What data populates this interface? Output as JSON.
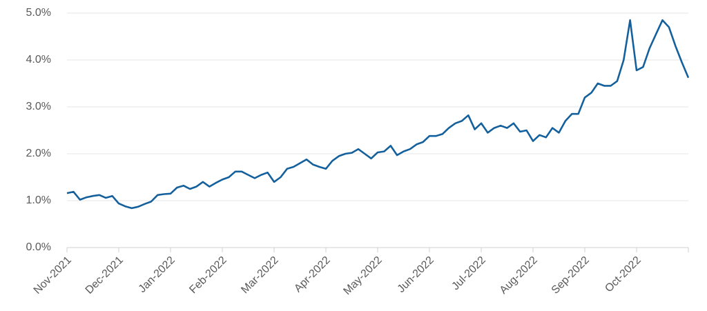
{
  "chart_data": {
    "type": "line",
    "categories": [
      "Nov-2021",
      null,
      null,
      null,
      null,
      null,
      null,
      null,
      "Dec-2021",
      null,
      null,
      null,
      null,
      null,
      null,
      null,
      "Jan-2022",
      null,
      null,
      null,
      null,
      null,
      null,
      null,
      "Feb-2022",
      null,
      null,
      null,
      null,
      null,
      null,
      null,
      "Mar-2022",
      null,
      null,
      null,
      null,
      null,
      null,
      null,
      "Apr-2022",
      null,
      null,
      null,
      null,
      null,
      null,
      null,
      "May-2022",
      null,
      null,
      null,
      null,
      null,
      null,
      null,
      "Jun-2022",
      null,
      null,
      null,
      null,
      null,
      null,
      null,
      "Jul-2022",
      null,
      null,
      null,
      null,
      null,
      null,
      null,
      "Aug-2022",
      null,
      null,
      null,
      null,
      null,
      null,
      null,
      "Sep-2022",
      null,
      null,
      null,
      null,
      null,
      null,
      null,
      "Oct-2022",
      null,
      null,
      null,
      null,
      null,
      null,
      null,
      null
    ],
    "series": [
      {
        "color": "#13609c",
        "values": [
          1.16,
          1.19,
          1.02,
          1.07,
          1.1,
          1.12,
          1.06,
          1.1,
          0.94,
          0.88,
          0.84,
          0.87,
          0.93,
          0.98,
          1.12,
          1.14,
          1.15,
          1.28,
          1.32,
          1.25,
          1.3,
          1.4,
          1.3,
          1.38,
          1.45,
          1.5,
          1.62,
          1.62,
          1.55,
          1.48,
          1.55,
          1.6,
          1.4,
          1.5,
          1.68,
          1.72,
          1.8,
          1.88,
          1.77,
          1.72,
          1.68,
          1.85,
          1.95,
          2.0,
          2.02,
          2.1,
          2.0,
          1.9,
          2.03,
          2.05,
          2.17,
          1.97,
          2.05,
          2.1,
          2.2,
          2.25,
          2.38,
          2.38,
          2.42,
          2.55,
          2.65,
          2.7,
          2.82,
          2.52,
          2.65,
          2.45,
          2.55,
          2.6,
          2.55,
          2.65,
          2.47,
          2.5,
          2.27,
          2.4,
          2.35,
          2.55,
          2.45,
          2.7,
          2.85,
          2.85,
          3.2,
          3.3,
          3.5,
          3.45,
          3.45,
          3.55,
          4.0,
          4.85,
          3.78,
          3.85,
          4.25,
          4.55,
          4.85,
          4.7,
          4.3,
          3.95,
          3.62
        ]
      }
    ],
    "ylim": [
      0,
      5
    ],
    "yticks": [
      {
        "value": 0,
        "label": "0.0%"
      },
      {
        "value": 1,
        "label": "1.0%"
      },
      {
        "value": 2,
        "label": "2.0%"
      },
      {
        "value": 3,
        "label": "3.0%"
      },
      {
        "value": 4,
        "label": "4.0%"
      },
      {
        "value": 5,
        "label": "5.0%"
      }
    ],
    "grid": true
  }
}
